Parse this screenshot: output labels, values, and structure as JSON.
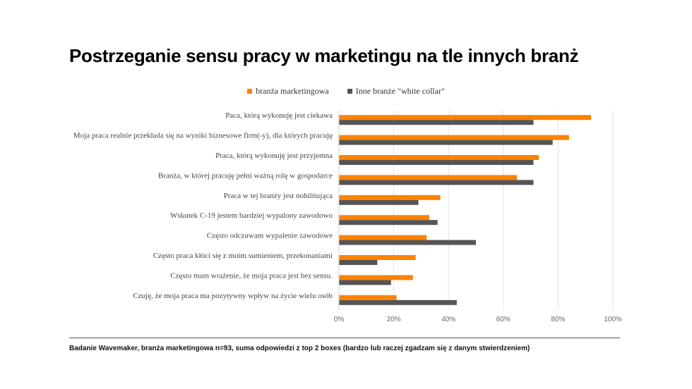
{
  "colors": {
    "marketing": "#ff8200",
    "other": "#555555",
    "grid": "#e3e3e3"
  },
  "chart_data": {
    "type": "bar",
    "orientation": "horizontal",
    "title": "Postrzeganie sensu pracy w marketingu na tle innych branż",
    "categories": [
      "Paca, którą wykonuję jest ciekawa",
      "Moja praca realnie przekłada się na wyniki biznesowe firm(-y), dla których pracuję",
      "Praca, którą wykonuję jest przyjemna",
      "Branża, w której pracuję pełni ważną rolę w gospodarce",
      "Praca w tej branży jest nobilitująca",
      "Wskutek C-19 jestem bardziej wypalony zawodowo",
      "Często odczuwam wypalenie zawodowe",
      "Często praca kłóci się z moim sumieniem, przekonaniami",
      "Często mam wrażenie, że moja praca jest bez sensu.",
      "Czuję, że moja praca ma pozytywny wpływ na życie wielu osób"
    ],
    "series": [
      {
        "name": "branża marketingowa",
        "values": [
          92,
          84,
          73,
          65,
          37,
          33,
          32,
          28,
          27,
          21
        ]
      },
      {
        "name": "Inne branże \"white collar\"",
        "values": [
          71,
          78,
          71,
          71,
          29,
          36,
          50,
          14,
          19,
          43
        ]
      }
    ],
    "xlim": [
      0,
      100
    ],
    "xticks": [
      "0%",
      "20%",
      "40%",
      "60%",
      "80%",
      "100%"
    ],
    "grid": true,
    "legend_position": "top-center"
  },
  "footnote": "Badanie Wavemaker, branża marketingowa n=93, suma odpowiedzi  z top 2 boxes (bardzo lub raczej zgadzam się z danym stwierdzeniem)"
}
